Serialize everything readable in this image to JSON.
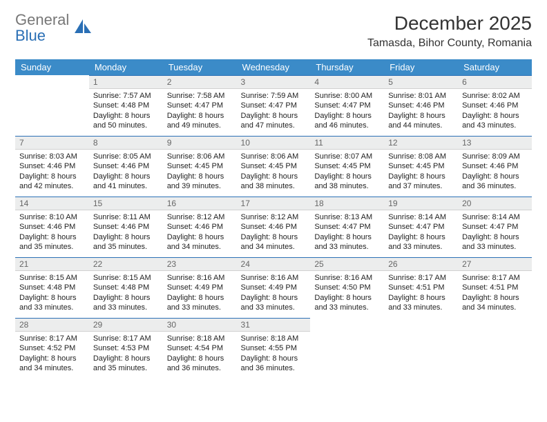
{
  "logo": {
    "word1": "General",
    "word2": "Blue",
    "color1": "#777777",
    "color2": "#2a6fb5"
  },
  "title": "December 2025",
  "location": "Tamasda, Bihor County, Romania",
  "columns": [
    "Sunday",
    "Monday",
    "Tuesday",
    "Wednesday",
    "Thursday",
    "Friday",
    "Saturday"
  ],
  "header_bg": "#3b8bc8",
  "daynum_bg": "#eceded",
  "daynum_border_top": "#2a6fb5",
  "weeks": [
    [
      {
        "n": "",
        "lines": []
      },
      {
        "n": "1",
        "lines": [
          "Sunrise: 7:57 AM",
          "Sunset: 4:48 PM",
          "Daylight: 8 hours",
          "and 50 minutes."
        ]
      },
      {
        "n": "2",
        "lines": [
          "Sunrise: 7:58 AM",
          "Sunset: 4:47 PM",
          "Daylight: 8 hours",
          "and 49 minutes."
        ]
      },
      {
        "n": "3",
        "lines": [
          "Sunrise: 7:59 AM",
          "Sunset: 4:47 PM",
          "Daylight: 8 hours",
          "and 47 minutes."
        ]
      },
      {
        "n": "4",
        "lines": [
          "Sunrise: 8:00 AM",
          "Sunset: 4:47 PM",
          "Daylight: 8 hours",
          "and 46 minutes."
        ]
      },
      {
        "n": "5",
        "lines": [
          "Sunrise: 8:01 AM",
          "Sunset: 4:46 PM",
          "Daylight: 8 hours",
          "and 44 minutes."
        ]
      },
      {
        "n": "6",
        "lines": [
          "Sunrise: 8:02 AM",
          "Sunset: 4:46 PM",
          "Daylight: 8 hours",
          "and 43 minutes."
        ]
      }
    ],
    [
      {
        "n": "7",
        "lines": [
          "Sunrise: 8:03 AM",
          "Sunset: 4:46 PM",
          "Daylight: 8 hours",
          "and 42 minutes."
        ]
      },
      {
        "n": "8",
        "lines": [
          "Sunrise: 8:05 AM",
          "Sunset: 4:46 PM",
          "Daylight: 8 hours",
          "and 41 minutes."
        ]
      },
      {
        "n": "9",
        "lines": [
          "Sunrise: 8:06 AM",
          "Sunset: 4:45 PM",
          "Daylight: 8 hours",
          "and 39 minutes."
        ]
      },
      {
        "n": "10",
        "lines": [
          "Sunrise: 8:06 AM",
          "Sunset: 4:45 PM",
          "Daylight: 8 hours",
          "and 38 minutes."
        ]
      },
      {
        "n": "11",
        "lines": [
          "Sunrise: 8:07 AM",
          "Sunset: 4:45 PM",
          "Daylight: 8 hours",
          "and 38 minutes."
        ]
      },
      {
        "n": "12",
        "lines": [
          "Sunrise: 8:08 AM",
          "Sunset: 4:45 PM",
          "Daylight: 8 hours",
          "and 37 minutes."
        ]
      },
      {
        "n": "13",
        "lines": [
          "Sunrise: 8:09 AM",
          "Sunset: 4:46 PM",
          "Daylight: 8 hours",
          "and 36 minutes."
        ]
      }
    ],
    [
      {
        "n": "14",
        "lines": [
          "Sunrise: 8:10 AM",
          "Sunset: 4:46 PM",
          "Daylight: 8 hours",
          "and 35 minutes."
        ]
      },
      {
        "n": "15",
        "lines": [
          "Sunrise: 8:11 AM",
          "Sunset: 4:46 PM",
          "Daylight: 8 hours",
          "and 35 minutes."
        ]
      },
      {
        "n": "16",
        "lines": [
          "Sunrise: 8:12 AM",
          "Sunset: 4:46 PM",
          "Daylight: 8 hours",
          "and 34 minutes."
        ]
      },
      {
        "n": "17",
        "lines": [
          "Sunrise: 8:12 AM",
          "Sunset: 4:46 PM",
          "Daylight: 8 hours",
          "and 34 minutes."
        ]
      },
      {
        "n": "18",
        "lines": [
          "Sunrise: 8:13 AM",
          "Sunset: 4:47 PM",
          "Daylight: 8 hours",
          "and 33 minutes."
        ]
      },
      {
        "n": "19",
        "lines": [
          "Sunrise: 8:14 AM",
          "Sunset: 4:47 PM",
          "Daylight: 8 hours",
          "and 33 minutes."
        ]
      },
      {
        "n": "20",
        "lines": [
          "Sunrise: 8:14 AM",
          "Sunset: 4:47 PM",
          "Daylight: 8 hours",
          "and 33 minutes."
        ]
      }
    ],
    [
      {
        "n": "21",
        "lines": [
          "Sunrise: 8:15 AM",
          "Sunset: 4:48 PM",
          "Daylight: 8 hours",
          "and 33 minutes."
        ]
      },
      {
        "n": "22",
        "lines": [
          "Sunrise: 8:15 AM",
          "Sunset: 4:48 PM",
          "Daylight: 8 hours",
          "and 33 minutes."
        ]
      },
      {
        "n": "23",
        "lines": [
          "Sunrise: 8:16 AM",
          "Sunset: 4:49 PM",
          "Daylight: 8 hours",
          "and 33 minutes."
        ]
      },
      {
        "n": "24",
        "lines": [
          "Sunrise: 8:16 AM",
          "Sunset: 4:49 PM",
          "Daylight: 8 hours",
          "and 33 minutes."
        ]
      },
      {
        "n": "25",
        "lines": [
          "Sunrise: 8:16 AM",
          "Sunset: 4:50 PM",
          "Daylight: 8 hours",
          "and 33 minutes."
        ]
      },
      {
        "n": "26",
        "lines": [
          "Sunrise: 8:17 AM",
          "Sunset: 4:51 PM",
          "Daylight: 8 hours",
          "and 33 minutes."
        ]
      },
      {
        "n": "27",
        "lines": [
          "Sunrise: 8:17 AM",
          "Sunset: 4:51 PM",
          "Daylight: 8 hours",
          "and 34 minutes."
        ]
      }
    ],
    [
      {
        "n": "28",
        "lines": [
          "Sunrise: 8:17 AM",
          "Sunset: 4:52 PM",
          "Daylight: 8 hours",
          "and 34 minutes."
        ]
      },
      {
        "n": "29",
        "lines": [
          "Sunrise: 8:17 AM",
          "Sunset: 4:53 PM",
          "Daylight: 8 hours",
          "and 35 minutes."
        ]
      },
      {
        "n": "30",
        "lines": [
          "Sunrise: 8:18 AM",
          "Sunset: 4:54 PM",
          "Daylight: 8 hours",
          "and 36 minutes."
        ]
      },
      {
        "n": "31",
        "lines": [
          "Sunrise: 8:18 AM",
          "Sunset: 4:55 PM",
          "Daylight: 8 hours",
          "and 36 minutes."
        ]
      },
      {
        "n": "",
        "lines": []
      },
      {
        "n": "",
        "lines": []
      },
      {
        "n": "",
        "lines": []
      }
    ]
  ]
}
